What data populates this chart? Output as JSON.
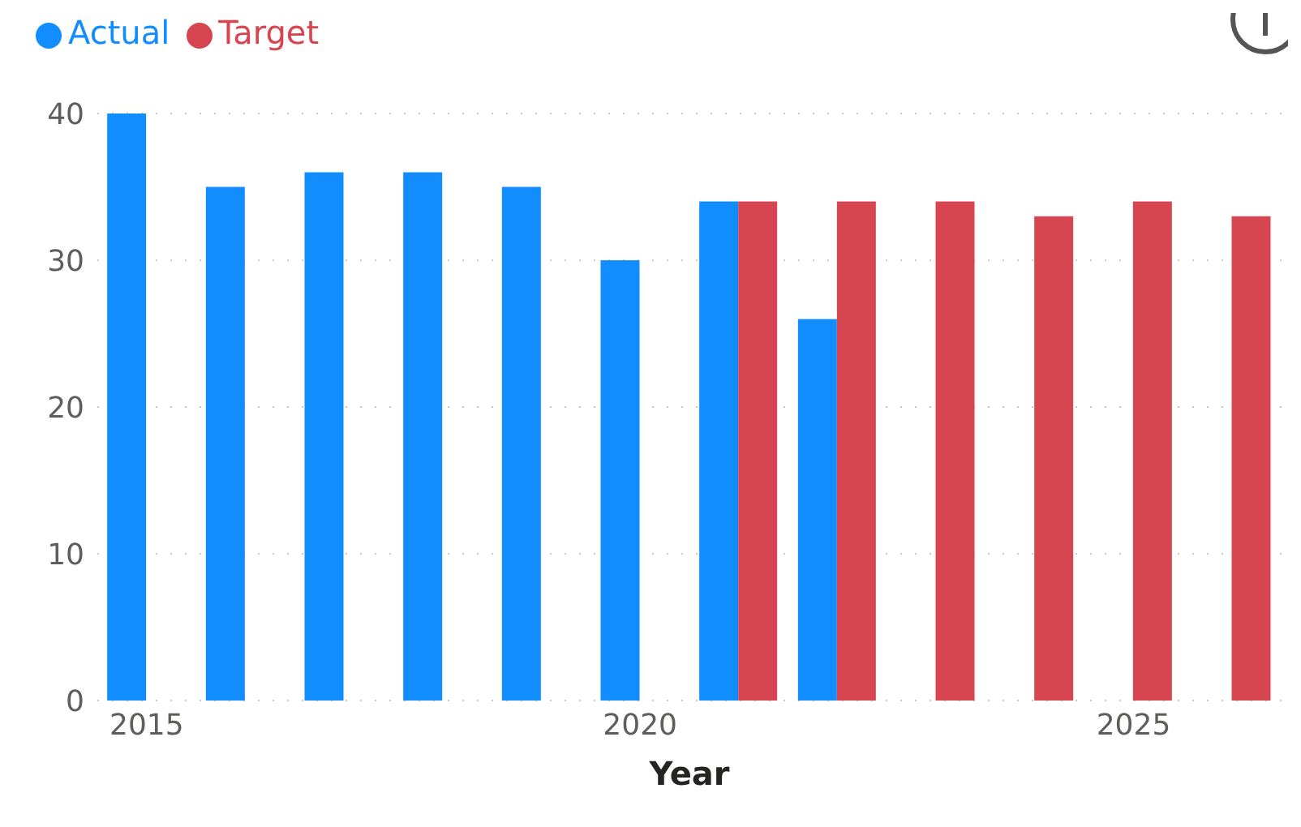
{
  "chart_data": {
    "type": "bar",
    "xlabel": "Year",
    "categories": [
      "2015",
      null,
      null,
      null,
      null,
      "2020",
      null,
      null,
      null,
      null,
      "2025",
      null
    ],
    "series": [
      {
        "name": "Actual",
        "color": "#118dff",
        "values": [
          40,
          35,
          36,
          36,
          35,
          30,
          34,
          26,
          null,
          null,
          null,
          null
        ]
      },
      {
        "name": "Target",
        "color": "#d64550",
        "values": [
          null,
          null,
          null,
          null,
          null,
          null,
          34,
          34,
          34,
          33,
          34,
          33
        ]
      }
    ],
    "ylim": [
      0,
      40
    ],
    "yticks": [
      0,
      10,
      20,
      30,
      40
    ],
    "grid": "y",
    "legend": "top left"
  }
}
